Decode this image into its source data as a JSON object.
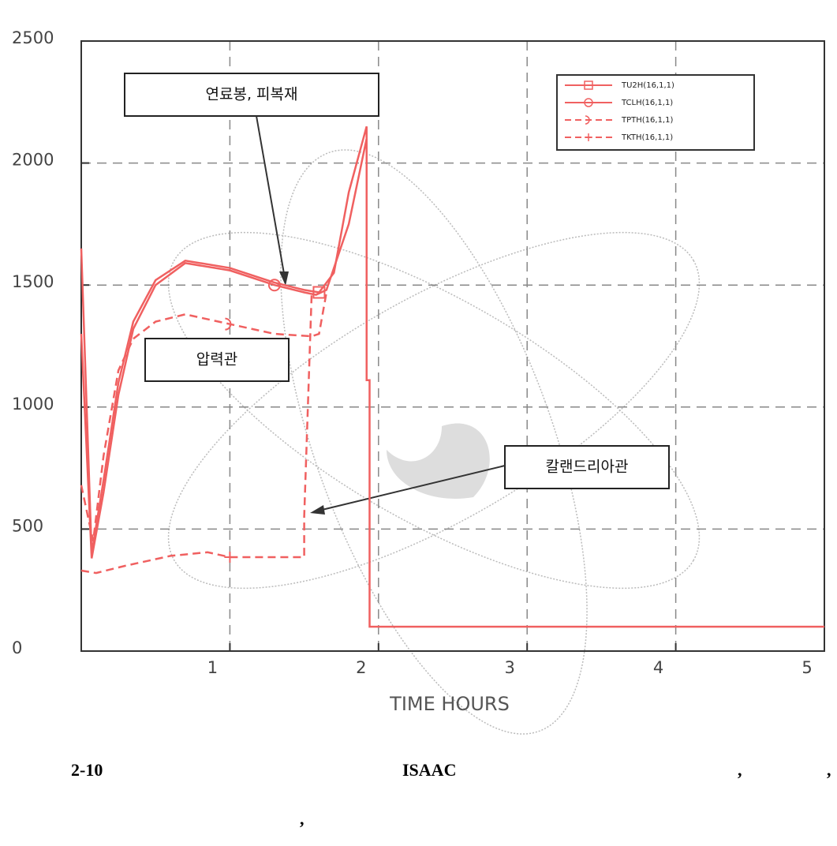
{
  "chart_data": {
    "type": "line",
    "xlabel": "TIME HOURS",
    "xlim": [
      0,
      5
    ],
    "xticks": [
      1,
      2,
      3,
      4,
      5
    ],
    "ylim": [
      0,
      2500
    ],
    "yticks": [
      0,
      500,
      1000,
      1500,
      2000,
      2500
    ],
    "grid": true,
    "legend": "upper right",
    "series": [
      {
        "name": "TU2H(16,1,1)",
        "color": "#f06060",
        "dash": false,
        "marker": "square",
        "x": [
          0,
          0.07,
          0.15,
          0.25,
          0.35,
          0.5,
          0.7,
          1.0,
          1.3,
          1.5,
          1.6,
          1.7,
          1.8,
          1.92,
          1.92,
          1.94,
          1.94,
          5
        ],
        "values": [
          1650,
          400,
          700,
          1100,
          1350,
          1520,
          1600,
          1570,
          1510,
          1480,
          1470,
          1550,
          1880,
          2150,
          1110,
          1110,
          100,
          100
        ]
      },
      {
        "name": "TCLH(16,1,1)",
        "color": "#f06060",
        "dash": false,
        "marker": "circle",
        "x": [
          0,
          0.07,
          0.15,
          0.25,
          0.35,
          0.5,
          0.7,
          1.0,
          1.3,
          1.5,
          1.58,
          1.65,
          1.8,
          1.92
        ],
        "values": [
          1300,
          380,
          650,
          1050,
          1320,
          1500,
          1590,
          1560,
          1500,
          1470,
          1460,
          1480,
          1750,
          2100
        ]
      },
      {
        "name": "TPTH(16,1,1)",
        "color": "#f06060",
        "dash": true,
        "marker": "arc",
        "x": [
          0,
          0.08,
          0.15,
          0.25,
          0.35,
          0.5,
          0.7,
          1.0,
          1.3,
          1.55,
          1.6,
          1.65
        ],
        "values": [
          680,
          450,
          800,
          1150,
          1280,
          1350,
          1380,
          1340,
          1300,
          1290,
          1300,
          1470
        ]
      },
      {
        "name": "TKTH(16,1,1)",
        "color": "#f06060",
        "dash": true,
        "marker": "plus",
        "x": [
          0,
          0.1,
          0.3,
          0.6,
          0.85,
          1.0,
          1.5,
          1.5,
          1.55
        ],
        "values": [
          330,
          320,
          350,
          390,
          405,
          385,
          385,
          550,
          1460
        ]
      }
    ],
    "annotations": [
      "연료봉, 피복재",
      "압력관",
      "칼랜드리아관"
    ],
    "caption": [
      "2-10",
      "ISAAC",
      ",",
      ",",
      ","
    ]
  }
}
